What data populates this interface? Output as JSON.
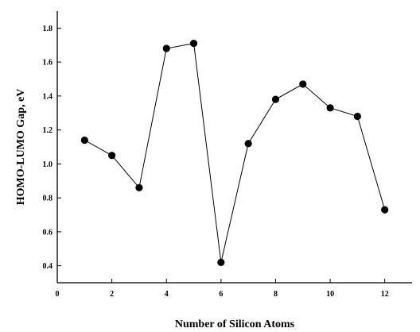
{
  "chart_data": {
    "type": "line",
    "title": "",
    "xlabel": "Number of Silicon Atoms",
    "ylabel": "HOMO-LUMO Gap,  eV",
    "xlim": [
      0,
      13
    ],
    "ylim": [
      0.3,
      1.9
    ],
    "xticks": [
      0,
      2,
      4,
      6,
      8,
      10,
      12
    ],
    "xtick_labels": [
      "0",
      "2",
      "4",
      "6",
      "8",
      "10",
      "12"
    ],
    "yticks": [
      0.4,
      0.6,
      0.8,
      1.0,
      1.2,
      1.4,
      1.6,
      1.8
    ],
    "ytick_labels": [
      "0.4",
      "0.6",
      "0.8",
      "1.0",
      "1.2",
      "1.4",
      "1.6",
      "1.8"
    ],
    "grid": false,
    "legend": "none",
    "series": [
      {
        "x": [
          1,
          2,
          3,
          4,
          5,
          6,
          7,
          8,
          9,
          10,
          11,
          12
        ],
        "values": [
          1.14,
          1.05,
          0.86,
          1.68,
          1.71,
          0.42,
          1.12,
          1.38,
          1.47,
          1.33,
          1.28,
          0.73
        ],
        "color": "#000000",
        "marker": "filled-circle"
      }
    ]
  }
}
